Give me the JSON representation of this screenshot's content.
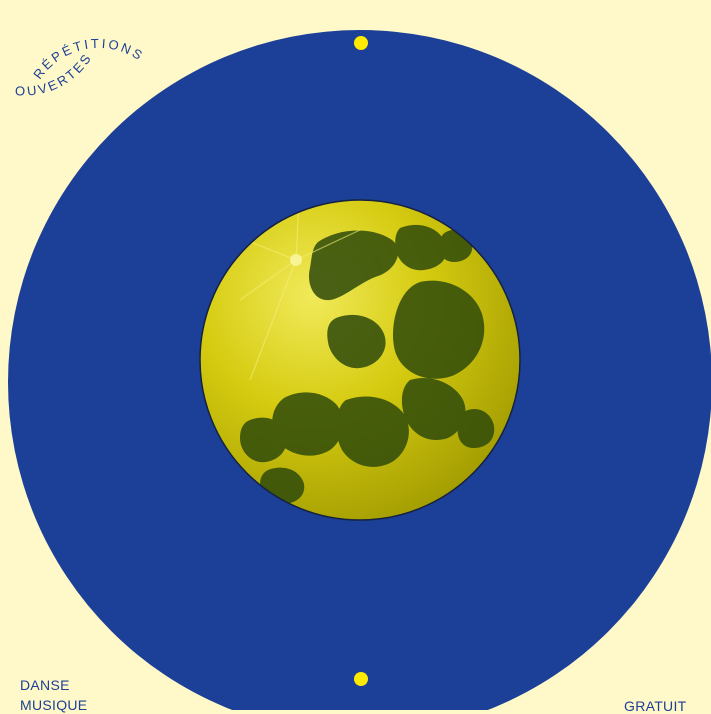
{
  "badge": {
    "line1": "RÉPÉTITIONS",
    "line2": "OUVERTES"
  },
  "labels": {
    "danse": "DANSE",
    "musique": "MUSIQUE",
    "gratuit": "GRATUIT"
  },
  "colors": {
    "background": "#FFF8C8",
    "disc": "#1C3F97",
    "moon_light": "#E6DC00",
    "moon_dark": "#2E4A0B",
    "dot": "#FFEB00",
    "text": "#1C3F97"
  },
  "icons": {
    "moon": "full-moon-yellow",
    "dots": "yellow-dot"
  }
}
